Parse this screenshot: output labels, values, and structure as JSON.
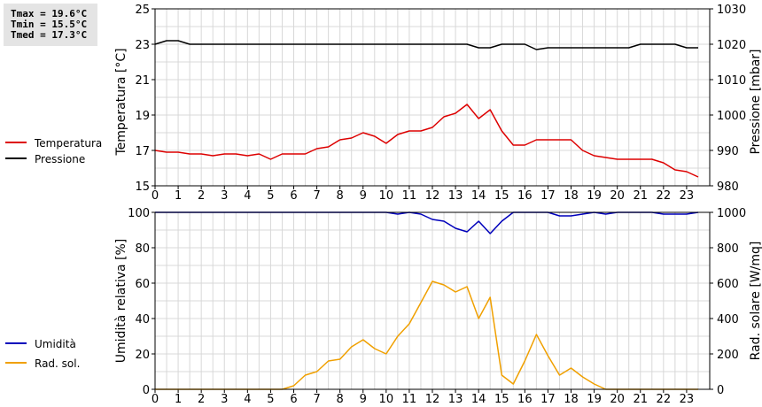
{
  "stats": {
    "tmax": "Tmax = 19.6°C",
    "tmin": "Tmin = 15.5°C",
    "tmed": "Tmed = 17.3°C"
  },
  "colors": {
    "temperature": "#dd0000",
    "pressure": "#000000",
    "humidity": "#0000bb",
    "solar": "#f0a000",
    "grid": "#d8d8d8"
  },
  "chart_data": [
    {
      "type": "line",
      "grid": true,
      "x_ticks": [
        "0",
        "1",
        "2",
        "3",
        "4",
        "5",
        "6",
        "7",
        "8",
        "9",
        "10",
        "11",
        "12",
        "13",
        "14",
        "15",
        "16",
        "17",
        "18",
        "19",
        "20",
        "21",
        "22",
        "23"
      ],
      "xlim": [
        0,
        24
      ],
      "ylabel": "Temperatura [°C]",
      "ylim": [
        15,
        25
      ],
      "y_ticks": [
        "15",
        "17",
        "19",
        "21",
        "23",
        "25"
      ],
      "y2label": "Pressione [mbar]",
      "y2lim": [
        980,
        1030
      ],
      "y2_ticks": [
        "980",
        "990",
        "1000",
        "1010",
        "1020",
        "1030"
      ],
      "series": [
        {
          "name": "Temperatura",
          "axis": "left",
          "color": "#dd0000",
          "x": [
            0,
            0.5,
            1,
            1.5,
            2,
            2.5,
            3,
            3.5,
            4,
            4.5,
            5,
            5.5,
            6,
            6.5,
            7,
            7.5,
            8,
            8.5,
            9,
            9.5,
            10,
            10.5,
            11,
            11.5,
            12,
            12.5,
            13,
            13.5,
            14,
            14.5,
            15,
            15.5,
            16,
            16.5,
            17,
            17.5,
            18,
            18.5,
            19,
            19.5,
            20,
            20.5,
            21,
            21.5,
            22,
            22.5,
            23,
            23.5
          ],
          "y": [
            17.0,
            16.9,
            16.9,
            16.8,
            16.8,
            16.7,
            16.8,
            16.8,
            16.7,
            16.8,
            16.5,
            16.8,
            16.8,
            16.8,
            17.1,
            17.2,
            17.6,
            17.7,
            18.0,
            17.8,
            17.4,
            17.9,
            18.1,
            18.1,
            18.3,
            18.9,
            19.1,
            19.6,
            18.8,
            19.3,
            18.1,
            17.3,
            17.3,
            17.6,
            17.6,
            17.6,
            17.6,
            17.0,
            16.7,
            16.6,
            16.5,
            16.5,
            16.5,
            16.5,
            16.3,
            15.9,
            15.8,
            15.5
          ]
        },
        {
          "name": "Pressione",
          "axis": "right",
          "color": "#000000",
          "x": [
            0,
            0.5,
            1,
            1.5,
            2,
            2.5,
            3,
            3.5,
            4,
            4.5,
            5,
            5.5,
            6,
            6.5,
            7,
            7.5,
            8,
            8.5,
            9,
            9.5,
            10,
            10.5,
            11,
            11.5,
            12,
            12.5,
            13,
            13.5,
            14,
            14.5,
            15,
            15.5,
            16,
            16.5,
            17,
            17.5,
            18,
            18.5,
            19,
            19.5,
            20,
            20.5,
            21,
            21.5,
            22,
            22.5,
            23,
            23.5
          ],
          "y": [
            1020,
            1021,
            1021,
            1020,
            1020,
            1020,
            1020,
            1020,
            1020,
            1020,
            1020,
            1020,
            1020,
            1020,
            1020,
            1020,
            1020,
            1020,
            1020,
            1020,
            1020,
            1020,
            1020,
            1020,
            1020,
            1020,
            1020,
            1020,
            1019,
            1019,
            1020,
            1020,
            1020,
            1018.5,
            1019,
            1019,
            1019,
            1019,
            1019,
            1019,
            1019,
            1019,
            1020,
            1020,
            1020,
            1020,
            1019,
            1019
          ]
        }
      ]
    },
    {
      "type": "line",
      "grid": true,
      "x_ticks": [
        "0",
        "1",
        "2",
        "3",
        "4",
        "5",
        "6",
        "7",
        "8",
        "9",
        "10",
        "11",
        "12",
        "13",
        "14",
        "15",
        "16",
        "17",
        "18",
        "19",
        "20",
        "21",
        "22",
        "23"
      ],
      "xlim": [
        0,
        24
      ],
      "ylabel": "Umidità relativa [%]",
      "ylim": [
        0,
        100
      ],
      "y_ticks": [
        "0",
        "20",
        "40",
        "60",
        "80",
        "100"
      ],
      "y2label": "Rad. solare [W/mq]",
      "y2lim": [
        0,
        1000
      ],
      "y2_ticks": [
        "0",
        "200",
        "400",
        "600",
        "800",
        "1000"
      ],
      "series": [
        {
          "name": "Umidità",
          "axis": "left",
          "color": "#0000bb",
          "x": [
            0,
            0.5,
            1,
            1.5,
            2,
            2.5,
            3,
            3.5,
            4,
            4.5,
            5,
            5.5,
            6,
            6.5,
            7,
            7.5,
            8,
            8.5,
            9,
            9.5,
            10,
            10.5,
            11,
            11.5,
            12,
            12.5,
            13,
            13.5,
            14,
            14.5,
            15,
            15.5,
            16,
            16.5,
            17,
            17.5,
            18,
            18.5,
            19,
            19.5,
            20,
            20.5,
            21,
            21.5,
            22,
            22.5,
            23,
            23.5
          ],
          "y": [
            100,
            100,
            100,
            100,
            100,
            100,
            100,
            100,
            100,
            100,
            100,
            100,
            100,
            100,
            100,
            100,
            100,
            100,
            100,
            100,
            100,
            99,
            100,
            99,
            96,
            95,
            91,
            89,
            95,
            88,
            95,
            100,
            100,
            100,
            100,
            98,
            98,
            99,
            100,
            99,
            100,
            100,
            100,
            100,
            99,
            99,
            99,
            100
          ]
        },
        {
          "name": "Rad. sol.",
          "axis": "right",
          "color": "#f0a000",
          "x": [
            0,
            0.5,
            1,
            1.5,
            2,
            2.5,
            3,
            3.5,
            4,
            4.5,
            5,
            5.5,
            6,
            6.5,
            7,
            7.5,
            8,
            8.5,
            9,
            9.5,
            10,
            10.5,
            11,
            11.5,
            12,
            12.5,
            13,
            13.5,
            14,
            14.5,
            15,
            15.5,
            16,
            16.5,
            17,
            17.5,
            18,
            18.5,
            19,
            19.5,
            20,
            20.5,
            21,
            21.5,
            22,
            22.5,
            23,
            23.5
          ],
          "y": [
            0,
            0,
            0,
            0,
            0,
            0,
            0,
            0,
            0,
            0,
            0,
            0,
            20,
            80,
            100,
            160,
            170,
            240,
            280,
            230,
            200,
            300,
            370,
            490,
            610,
            590,
            550,
            580,
            400,
            520,
            80,
            30,
            160,
            310,
            190,
            80,
            120,
            70,
            30,
            0,
            0,
            0,
            0,
            0,
            0,
            0,
            0,
            0
          ]
        }
      ]
    }
  ]
}
